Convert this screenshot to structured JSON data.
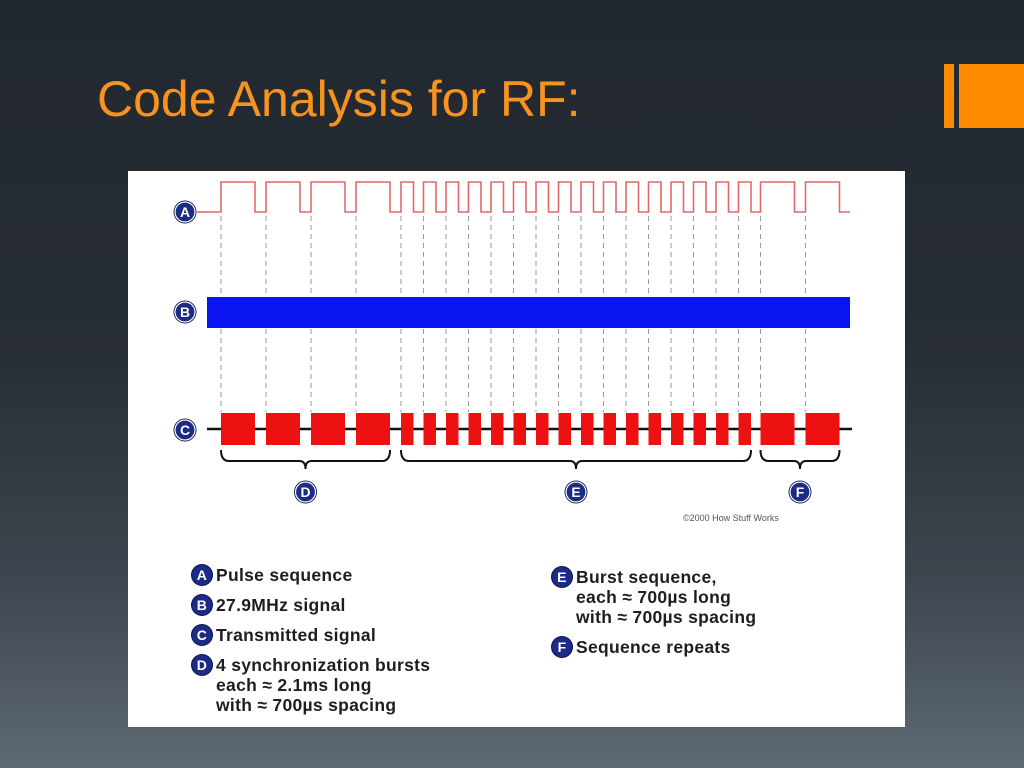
{
  "slide": {
    "title": "Code Analysis for RF:",
    "accent_color": "#ff8c00",
    "title_color": "#f7931e"
  },
  "diagram": {
    "row_labels": [
      "A",
      "B",
      "C"
    ],
    "group_labels": [
      "D",
      "E",
      "F"
    ],
    "sync_bursts": 4,
    "data_bursts": 16,
    "repeat_bursts": 2,
    "colors": {
      "pulse": "#e06868",
      "carrier": "#0a14f0",
      "transmitted": "#ee1111",
      "badge": "#1b2b86"
    },
    "copyright": "©2000 How Stuff Works"
  },
  "legend": {
    "left": [
      {
        "letter": "A",
        "text": "Pulse sequence"
      },
      {
        "letter": "B",
        "text": "27.9MHz signal"
      },
      {
        "letter": "C",
        "text": "Transmitted signal"
      },
      {
        "letter": "D",
        "text": "4 synchronization bursts\neach ≈ 2.1ms long\nwith ≈ 700µs spacing"
      }
    ],
    "right": [
      {
        "letter": "E",
        "text": "Burst sequence,\neach ≈ 700µs long\nwith ≈ 700µs spacing"
      },
      {
        "letter": "F",
        "text": "Sequence repeats"
      }
    ]
  }
}
